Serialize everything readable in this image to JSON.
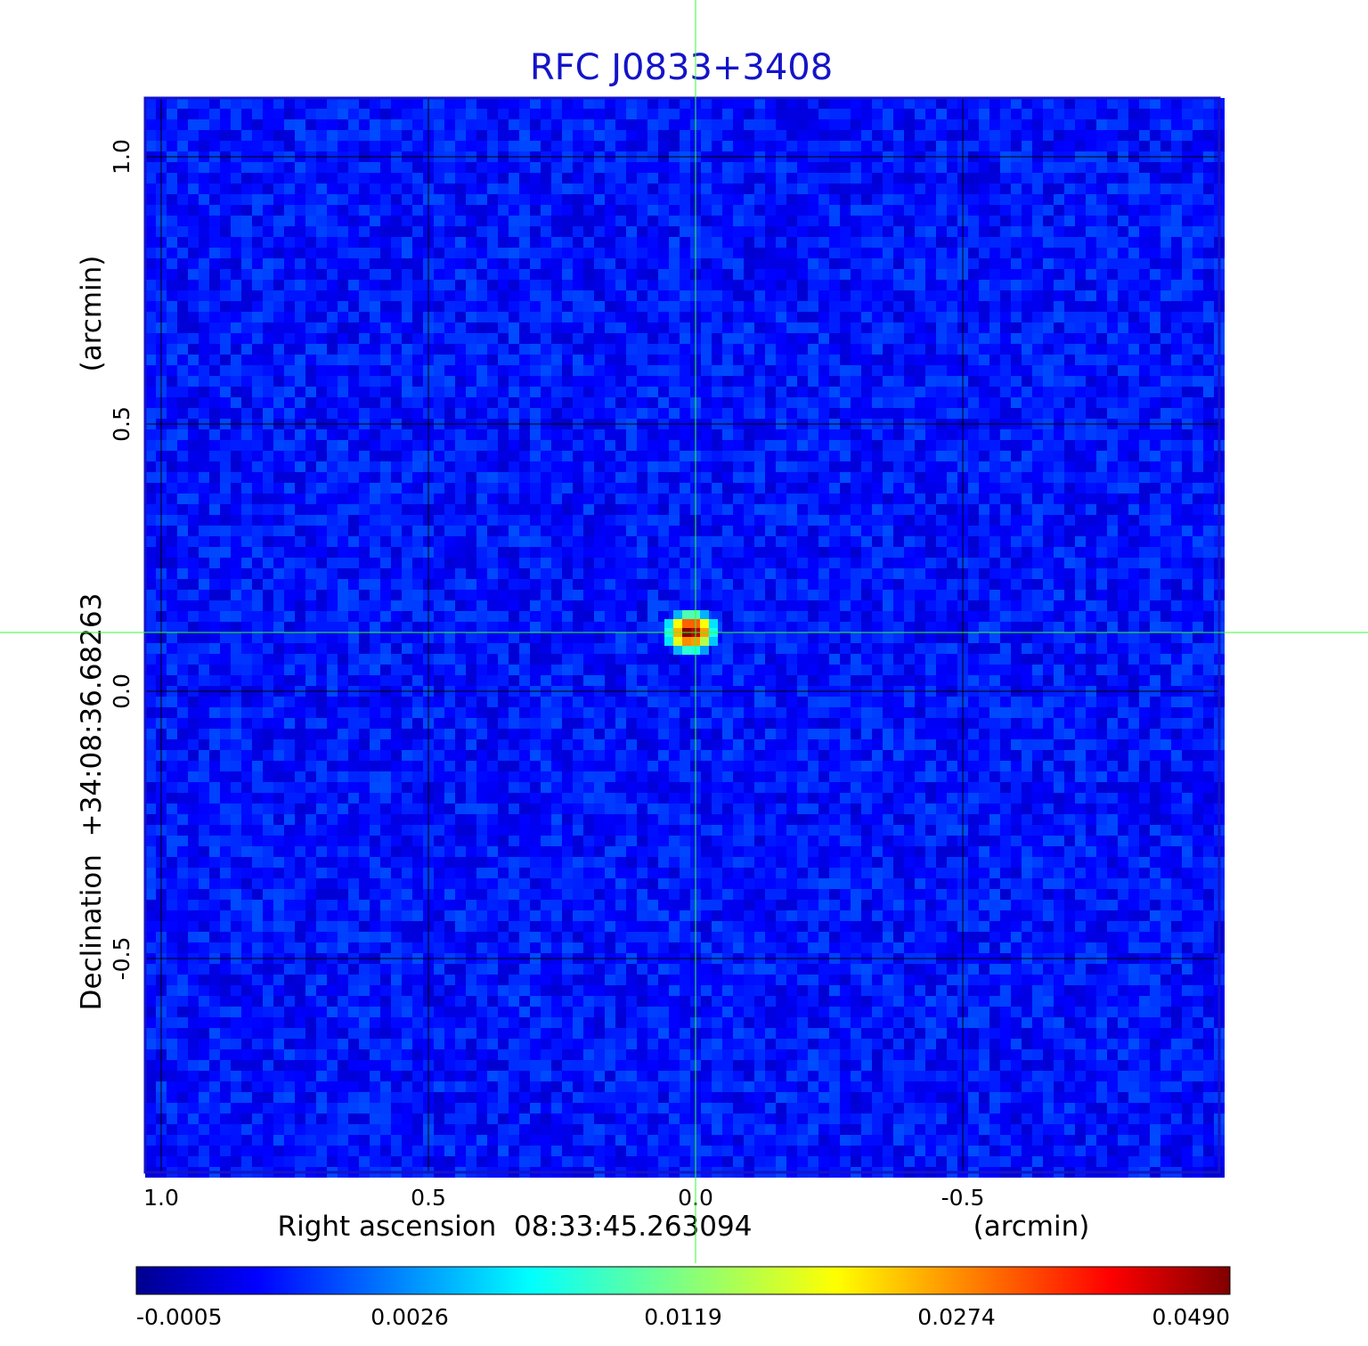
{
  "chart_data": {
    "type": "heatmap",
    "title": "RFC J0833+3408",
    "xlabel": "Right ascension  08:33:45.263094",
    "xlabel_unit": "(arcmin)",
    "ylabel": "Declination  +34:08:36.68263",
    "ylabel_unit": "(arcmin)",
    "x_ticks": [
      {
        "value": 1.0,
        "label": "1.0"
      },
      {
        "value": 0.5,
        "label": "0.5"
      },
      {
        "value": 0.0,
        "label": "0.0"
      },
      {
        "value": -0.5,
        "label": "-0.5"
      }
    ],
    "y_ticks": [
      {
        "value": 1.0,
        "label": "1.0"
      },
      {
        "value": 0.5,
        "label": "0.5"
      },
      {
        "value": 0.0,
        "label": "0.0"
      },
      {
        "value": -0.5,
        "label": "-0.5"
      }
    ],
    "xlim": [
      1.03,
      -0.98
    ],
    "ylim": [
      -0.9,
      1.11
    ],
    "x_reversed": true,
    "grid": true,
    "crosshair": {
      "x": 0.0,
      "y": 0.11
    },
    "source": {
      "x": 0.0,
      "y": 0.11,
      "peak": 0.049
    },
    "background_range": [
      -0.0005,
      0.0026
    ],
    "colorbar": {
      "ticks": [
        {
          "value": -0.0005,
          "label": "-0.0005"
        },
        {
          "value": 0.0026,
          "label": "0.0026"
        },
        {
          "value": 0.0119,
          "label": "0.0119"
        },
        {
          "value": 0.0274,
          "label": "0.0274"
        },
        {
          "value": 0.049,
          "label": "0.0490"
        }
      ],
      "colormap": "jet",
      "colors": [
        "#00008f",
        "#0000ff",
        "#00ffff",
        "#ffff00",
        "#ff0000",
        "#800000"
      ]
    },
    "colors": {
      "title": "#1414c8",
      "frame": "#1414c8",
      "grid": "#000000",
      "crosshair": "#33ff33"
    }
  }
}
